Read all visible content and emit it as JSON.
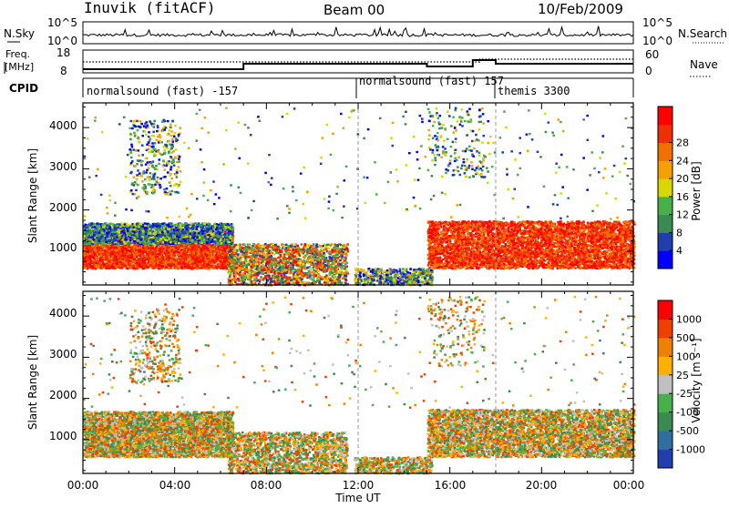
{
  "header": {
    "station": "Inuvik (fitACF)",
    "beam": "Beam 00",
    "date": "10/Feb/2009"
  },
  "nsky_panel": {
    "left_label": "N.Sky",
    "right_label": "N.Search",
    "left_ticks": [
      "10^5",
      "10^0"
    ],
    "right_ticks": [
      "10^5",
      "10^0"
    ]
  },
  "freq_panel": {
    "left_label_line1": "Freq.",
    "left_label_line2": "[MHz]",
    "right_label": "Nave",
    "left_ticks": [
      "18",
      "8"
    ],
    "right_ticks": [
      "60",
      "0"
    ]
  },
  "cpid": {
    "label": "CPID",
    "segments": [
      {
        "name": "normalsound (fast) -157",
        "start_hour": 0
      },
      {
        "name": "normalsound (fast) 157",
        "start_hour": 12
      },
      {
        "name": "themis 3300",
        "start_hour": 18
      }
    ]
  },
  "time_axis": {
    "label": "Time UT",
    "ticks": [
      "00:00",
      "04:00",
      "08:00",
      "12:00",
      "16:00",
      "20:00",
      "00:00"
    ]
  },
  "power_panel": {
    "ylabel": "Slant Range [km]",
    "yticks": [
      "1000",
      "2000",
      "3000",
      "4000"
    ],
    "colorbar_label": "Power [dB]",
    "colorbar_ticks": [
      "4",
      "8",
      "12",
      "16",
      "20",
      "24",
      "28"
    ],
    "colors": [
      "#0000ff",
      "#1f3fae",
      "#3a8a52",
      "#46b04a",
      "#d8d800",
      "#f5a000",
      "#f07000",
      "#f03000",
      "#ff0000"
    ]
  },
  "velocity_panel": {
    "ylabel": "Slant Range [km]",
    "yticks": [
      "1000",
      "2000",
      "3000",
      "4000"
    ],
    "colorbar_label": "Velocity [m s⁻¹]",
    "colorbar_ticks": [
      "1000",
      "500",
      "100",
      "25",
      "-25",
      "-100",
      "-500",
      "-1000"
    ],
    "colors": [
      "#1f3fae",
      "#2f6fa0",
      "#3a8a52",
      "#46b04a",
      "#c0c0c0",
      "#ffb000",
      "#f08000",
      "#f04000",
      "#ff0000"
    ]
  },
  "chart_data": {
    "type": "heatmap",
    "x_unit": "hours UT",
    "xlim": [
      0,
      24
    ],
    "ylim_km": [
      180,
      4600
    ],
    "scatter_blobs": [
      {
        "t0": 0.0,
        "t1": 6.5,
        "r0": 600,
        "r1": 1500,
        "kind": "strong",
        "density": 0.95
      },
      {
        "t0": 0.0,
        "t1": 6.5,
        "r0": 1200,
        "r1": 1700,
        "kind": "edge",
        "density": 0.5
      },
      {
        "t0": 6.3,
        "t1": 11.5,
        "r0": 200,
        "r1": 1200,
        "kind": "medium",
        "density": 0.55
      },
      {
        "t0": 2.0,
        "t1": 4.2,
        "r0": 2400,
        "r1": 4200,
        "kind": "patchy",
        "density": 0.25
      },
      {
        "t0": 15.0,
        "t1": 24.0,
        "r0": 600,
        "r1": 1750,
        "kind": "strong",
        "density": 0.9
      },
      {
        "t0": 11.8,
        "t1": 15.2,
        "r0": 200,
        "r1": 600,
        "kind": "weak",
        "density": 0.25
      },
      {
        "t0": 15.0,
        "t1": 17.5,
        "r0": 2800,
        "r1": 4500,
        "kind": "patchy",
        "density": 0.12
      },
      {
        "t0": 0.0,
        "t1": 24.0,
        "r0": 1800,
        "r1": 4500,
        "kind": "sparse",
        "density": 0.02
      }
    ]
  }
}
